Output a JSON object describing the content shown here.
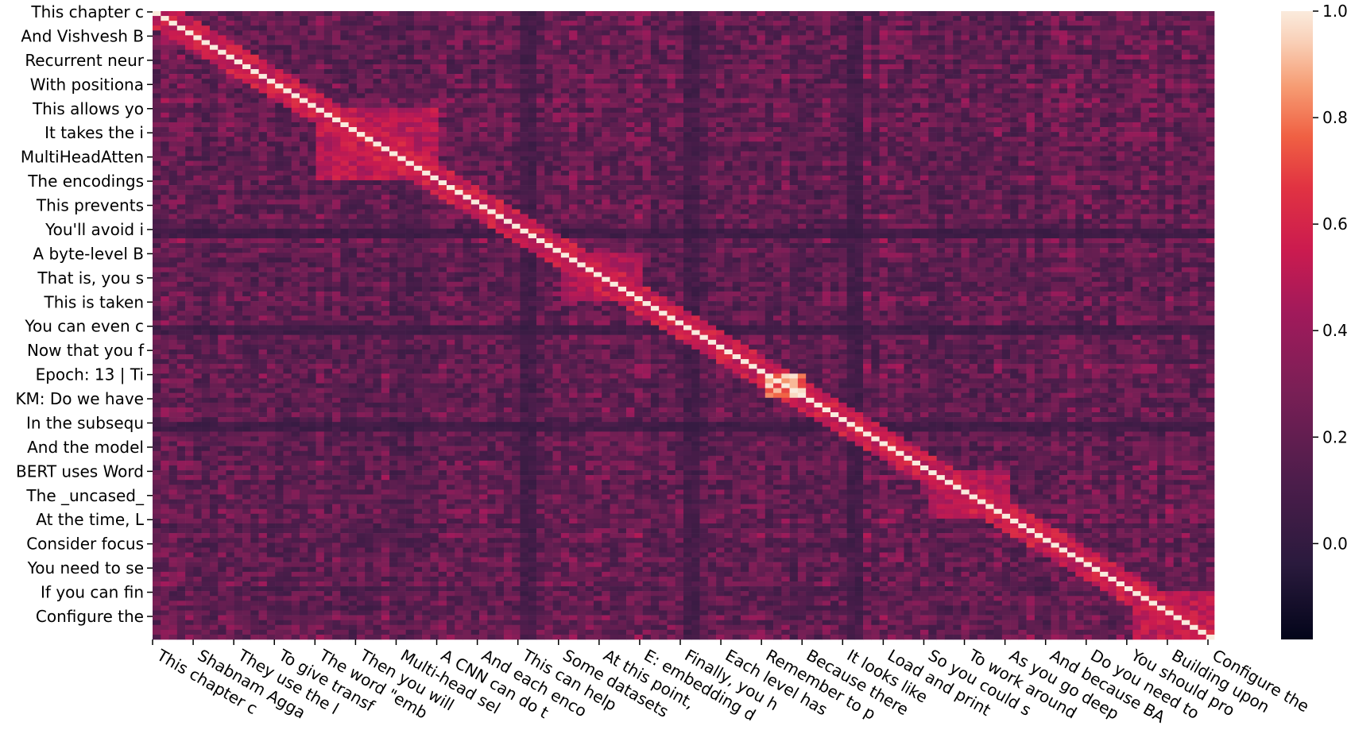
{
  "chart_data": {
    "type": "heatmap",
    "title": "",
    "xlabel": "",
    "ylabel": "",
    "matrix_shape": "square similarity matrix of text chunks",
    "diagonal_value": 1.0,
    "y_tick_labels": [
      "This chapter c",
      "And Vishvesh B",
      "Recurrent neur",
      "With positiona",
      "This allows yo",
      "It takes the i",
      "MultiHeadAtten",
      "The encodings ",
      "This prevents ",
      "You'll avoid i",
      "A byte-level B",
      "That is, you s",
      "This is taken ",
      "You can even c",
      "Now that you f",
      "Epoch: 13 | Ti",
      "KM: Do we have",
      "In the subsequ",
      "And the model ",
      "BERT uses Word",
      "The _uncased_ ",
      "At the time, L",
      "Consider focus",
      "You need to se",
      "If you can fin",
      "Configure the "
    ],
    "x_tick_labels": [
      "This chapter c",
      "Shabnam Agga",
      "They use the l",
      "To give transf",
      "The word \"emb",
      "Then you will",
      "Multi-head sel",
      "A CNN can do t",
      "And each enco",
      "This can help",
      "Some datasets",
      "At this point,",
      "E: embedding d",
      "Finally, you h",
      "Each level has",
      "Remember to p",
      "Because there",
      "It looks like",
      "Load and print",
      "So you could s",
      "To work around",
      "As you go deep",
      "And because BA",
      "Do you need to",
      "You should pro",
      "Building upon",
      "Configure the"
    ],
    "colorbar": {
      "colormap": "rocket",
      "vmin": -0.18,
      "vmax": 1.0,
      "ticks": [
        0.0,
        0.2,
        0.4,
        0.6,
        0.8,
        1.0
      ],
      "tick_labels": [
        "0.0",
        "0.2",
        "0.4",
        "0.6",
        "0.8",
        "1.0"
      ]
    },
    "bright_blocks": [
      {
        "row_start_label": "This allows yo",
        "row_end_label": "MultiHeadAtten",
        "level": 0.55
      },
      {
        "row_start_label": "A byte-level B",
        "row_end_label": "That is, you s",
        "level": 0.5
      },
      {
        "row_start_label": "Epoch: 13 | Ti",
        "row_end_label": "Epoch: 13 | Ti",
        "level": 0.9
      },
      {
        "row_start_label": "BERT uses Word",
        "row_end_label": "The _uncased_ ",
        "level": 0.5
      },
      {
        "row_start_label": "If you can fin",
        "row_end_label": "Configure the ",
        "level": 0.55
      }
    ],
    "dark_bands": [
      {
        "row_label": "You'll avoid i",
        "level": 0.05
      },
      {
        "row_label": "You can even c",
        "level": 0.05
      },
      {
        "row_label": "In the subsequ",
        "level": 0.1
      }
    ]
  }
}
